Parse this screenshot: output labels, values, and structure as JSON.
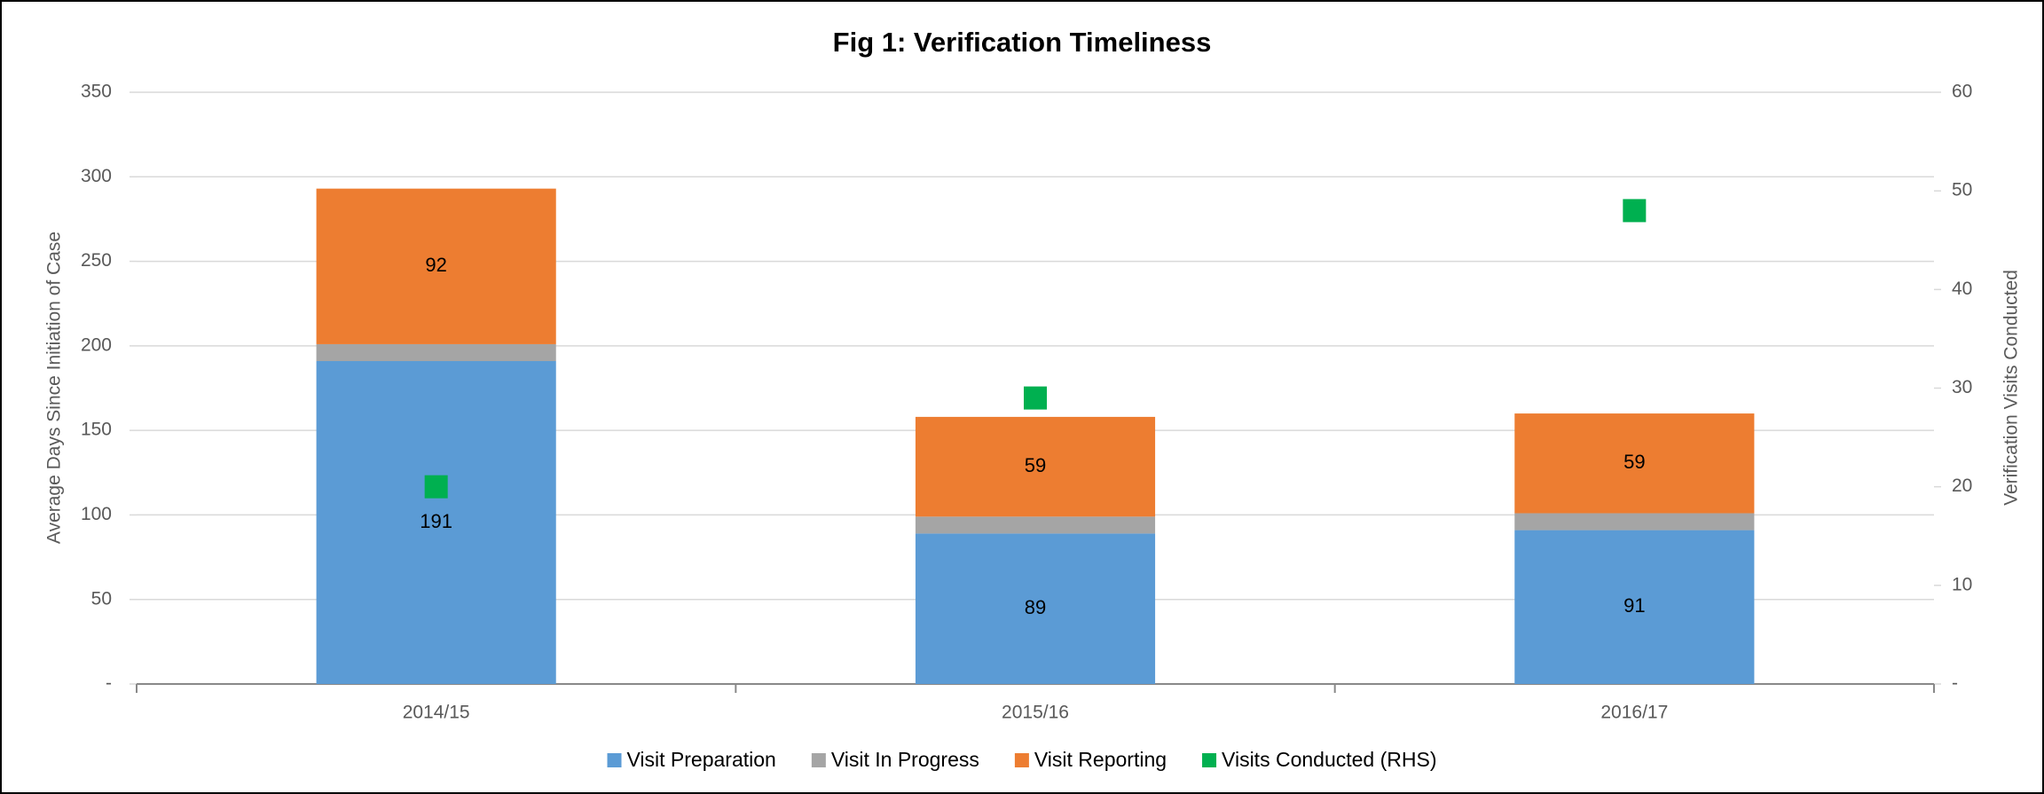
{
  "chart_data": {
    "type": "bar",
    "stacked": true,
    "title": "Fig 1: Verification Timeliness",
    "ylabel": "Average Days Since Initiation of Case",
    "y2label": "Verification Visits Conducted",
    "categories": [
      "2014/15",
      "2015/16",
      "2016/17"
    ],
    "series": [
      {
        "name": "Visit Preparation",
        "color": "#5b9bd5",
        "values": [
          191,
          89,
          91
        ],
        "data_labels": true
      },
      {
        "name": "Visit In Progress",
        "color": "#a5a5a5",
        "values": [
          10,
          10,
          10
        ],
        "data_labels": false
      },
      {
        "name": "Visit Reporting",
        "color": "#ed7d31",
        "values": [
          92,
          59,
          59
        ],
        "data_labels": true
      },
      {
        "name": "Visits Conducted (RHS)",
        "color": "#00b050",
        "values": [
          20,
          29,
          48
        ],
        "axis": "y2",
        "marker": "square"
      }
    ],
    "ylim": [
      0,
      350
    ],
    "yticks": [
      {
        "value": 0,
        "label": "-"
      },
      50,
      100,
      150,
      200,
      250,
      300,
      350
    ],
    "y2lim": [
      0,
      60
    ],
    "y2ticks": [
      {
        "value": 0,
        "label": "-"
      },
      10,
      20,
      30,
      40,
      50,
      60
    ],
    "grid": true,
    "legend": "bottom"
  }
}
